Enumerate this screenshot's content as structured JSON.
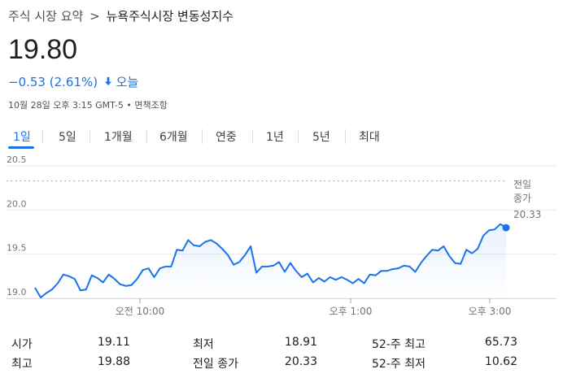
{
  "breadcrumb": {
    "parent": "주식 시장 요약",
    "separator": ">",
    "current": "뉴욕주식시장 변동성지수"
  },
  "quote": {
    "price": "19.80",
    "change": "−0.53 (2.61%)",
    "direction": "down",
    "change_period": "오늘",
    "meta": "10월 28일 오후 3:15 GMT-5 • 면책조항"
  },
  "tabs": [
    {
      "label": "1일",
      "active": true
    },
    {
      "label": "5일",
      "active": false
    },
    {
      "label": "1개월",
      "active": false
    },
    {
      "label": "6개월",
      "active": false
    },
    {
      "label": "연중",
      "active": false
    },
    {
      "label": "1년",
      "active": false
    },
    {
      "label": "5년",
      "active": false
    },
    {
      "label": "최대",
      "active": false
    }
  ],
  "colors": {
    "line": "#1a73e8",
    "change_down": "#1a73e8",
    "tab_active": "#1a73e8"
  },
  "chart_data": {
    "type": "line",
    "title": "",
    "xlabel": "",
    "ylabel": "",
    "yticks": [
      "20.5",
      "20.0",
      "19.5",
      "19.0"
    ],
    "ylim": [
      19.0,
      20.5
    ],
    "xticks": [
      "오전 10:00",
      "오후 1:00",
      "오후 3:00"
    ],
    "previous_close": {
      "label_line1": "전일",
      "label_line2": "종가",
      "value": "20.33"
    },
    "grid": "horizontal",
    "series": [
      {
        "values": [
          19.12,
          19.01,
          19.06,
          19.1,
          19.17,
          19.27,
          19.25,
          19.22,
          19.09,
          19.1,
          19.26,
          19.23,
          19.18,
          19.27,
          19.22,
          19.16,
          19.14,
          19.15,
          19.22,
          19.32,
          19.34,
          19.24,
          19.34,
          19.36,
          19.36,
          19.55,
          19.54,
          19.66,
          19.6,
          19.59,
          19.64,
          19.66,
          19.62,
          19.56,
          19.49,
          19.38,
          19.41,
          19.49,
          19.59,
          19.29,
          19.36,
          19.36,
          19.37,
          19.41,
          19.3,
          19.4,
          19.31,
          19.24,
          19.28,
          19.18,
          19.23,
          19.19,
          19.24,
          19.21,
          19.24,
          19.21,
          19.17,
          19.22,
          19.17,
          19.27,
          19.26,
          19.31,
          19.31,
          19.33,
          19.34,
          19.37,
          19.36,
          19.3,
          19.4,
          19.48,
          19.55,
          19.54,
          19.59,
          19.48,
          19.4,
          19.39,
          19.55,
          19.51,
          19.56,
          19.71,
          19.77,
          19.78,
          19.84,
          19.8
        ]
      }
    ],
    "last_point": 19.8
  },
  "stats": [
    {
      "label": "시가",
      "value": "19.11"
    },
    {
      "label": "최고",
      "value": "19.88"
    },
    {
      "label": "최저",
      "value": "18.91"
    },
    {
      "label": "전일 종가",
      "value": "20.33"
    },
    {
      "label": "52-주 최고",
      "value": "65.73"
    },
    {
      "label": "52-주 최저",
      "value": "10.62"
    }
  ]
}
